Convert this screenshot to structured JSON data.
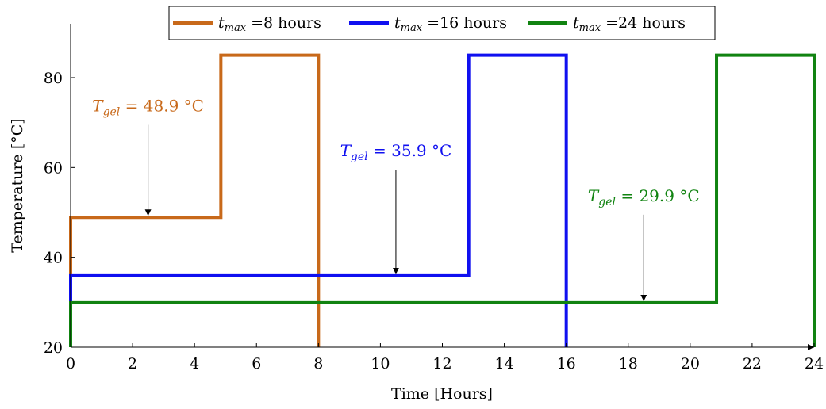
{
  "chart_data": {
    "type": "line",
    "xlabel": "Time [Hours]",
    "ylabel": "Temperature [°C]",
    "xlim": [
      0,
      24
    ],
    "ylim": [
      20,
      92
    ],
    "xticks": [
      "0",
      "2",
      "4",
      "6",
      "8",
      "10",
      "12",
      "14",
      "16",
      "18",
      "20",
      "22",
      "24"
    ],
    "yticks": [
      "20",
      "40",
      "60",
      "80"
    ],
    "grid": false,
    "legend_position": "top-center",
    "series": [
      {
        "name_prefix": "t",
        "name_subscript": "max",
        "name_suffix": " =8 hours",
        "color": "#c8691a",
        "x": [
          0,
          0,
          4.85,
          4.85,
          8,
          8
        ],
        "y": [
          20,
          48.9,
          48.9,
          85,
          85,
          20
        ]
      },
      {
        "name_prefix": "t",
        "name_subscript": "max",
        "name_suffix": " =16 hours",
        "color": "#1010f0",
        "x": [
          0,
          0,
          12.85,
          12.85,
          16,
          16
        ],
        "y": [
          20,
          35.9,
          35.9,
          85,
          85,
          20
        ]
      },
      {
        "name_prefix": "t",
        "name_subscript": "max",
        "name_suffix": " =24 hours",
        "color": "#118311",
        "x": [
          0,
          0,
          20.85,
          20.85,
          24,
          24
        ],
        "y": [
          20,
          29.9,
          29.9,
          85,
          85,
          20
        ]
      }
    ],
    "annotations": [
      {
        "prefix": "T",
        "subscript": "gel",
        "value_text": " = 48.9 °C",
        "color": "#c8691a",
        "label_x": 2.5,
        "label_y": 72.5,
        "arrow_from_y": 69.5,
        "arrow_to_x": 2.5,
        "arrow_to_y": 48.9
      },
      {
        "prefix": "T",
        "subscript": "gel",
        "value_text": " = 35.9 °C",
        "color": "#1010f0",
        "label_x": 10.5,
        "label_y": 62.5,
        "arrow_from_y": 59.5,
        "arrow_to_x": 10.5,
        "arrow_to_y": 35.9
      },
      {
        "prefix": "T",
        "subscript": "gel",
        "value_text": " = 29.9 °C",
        "color": "#118311",
        "label_x": 18.5,
        "label_y": 52.5,
        "arrow_from_y": 49.5,
        "arrow_to_x": 18.5,
        "arrow_to_y": 29.9
      }
    ]
  }
}
